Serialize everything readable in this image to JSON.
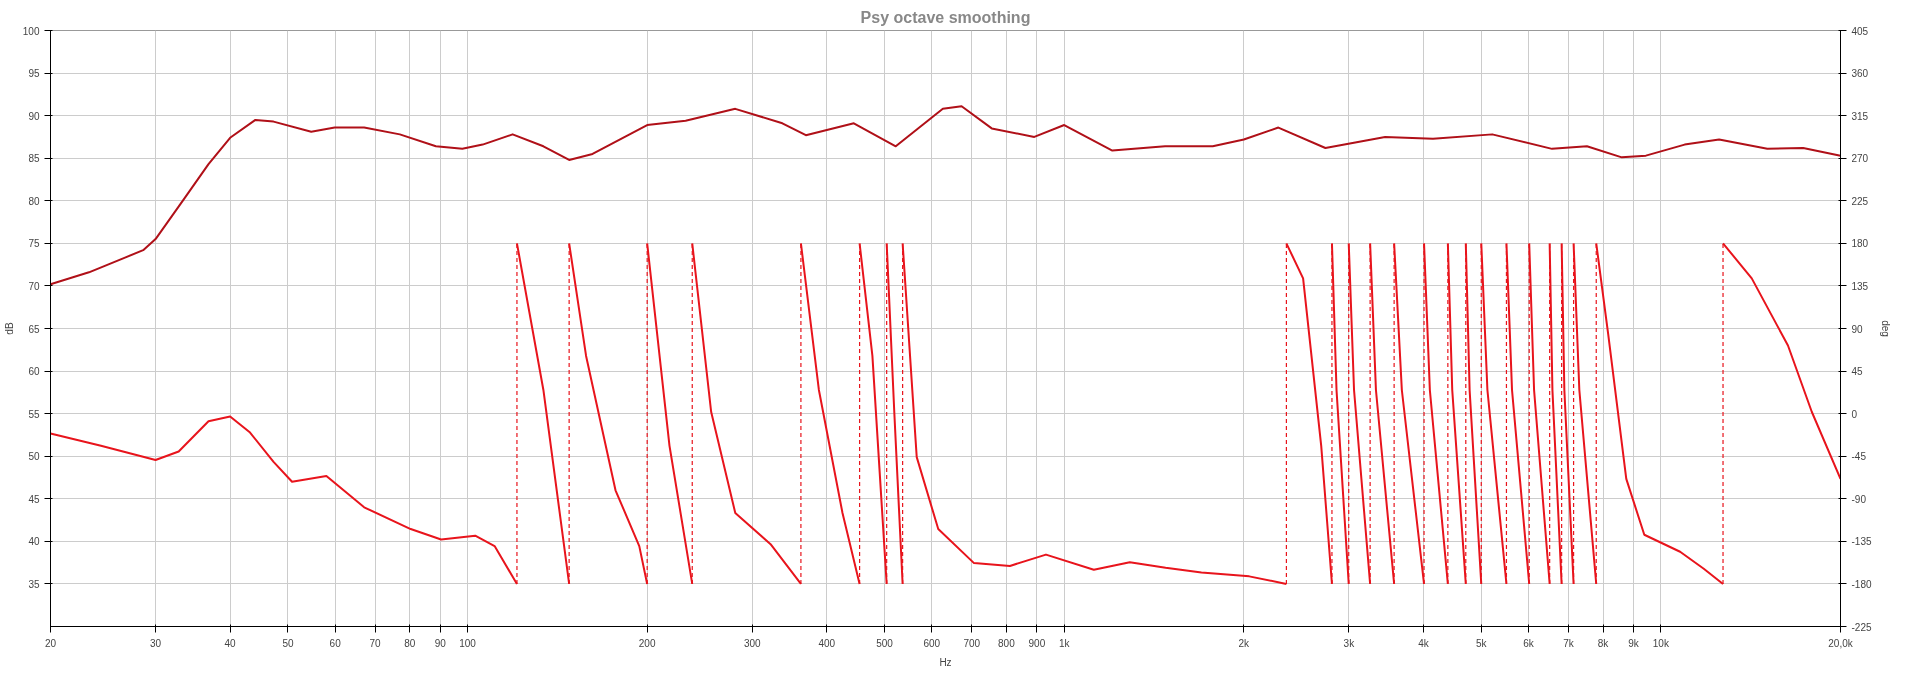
{
  "chart_data": {
    "type": "line",
    "title": "Psy octave smoothing",
    "xlabel": "Hz",
    "ylabel": "dB",
    "y2label": "deg",
    "log": "x",
    "grid": true,
    "xlim": [
      20,
      20000
    ],
    "xticks": [
      20,
      30,
      40,
      50,
      60,
      70,
      80,
      90,
      100,
      200,
      300,
      400,
      500,
      600,
      700,
      800,
      900,
      {
        "value": 1000,
        "label": "1k"
      },
      {
        "value": 2000,
        "label": "2k"
      },
      {
        "value": 3000,
        "label": "3k"
      },
      {
        "value": 4000,
        "label": "4k"
      },
      {
        "value": 5000,
        "label": "5k"
      },
      {
        "value": 6000,
        "label": "6k"
      },
      {
        "value": 7000,
        "label": "7k"
      },
      {
        "value": 8000,
        "label": "8k"
      },
      {
        "value": 9000,
        "label": "9k"
      },
      {
        "value": 10000,
        "label": "10k"
      },
      {
        "value": 20000,
        "label": "20,0k"
      }
    ],
    "ylim": [
      30,
      100
    ],
    "yticks": [
      35,
      40,
      45,
      50,
      55,
      60,
      65,
      70,
      75,
      80,
      85,
      90,
      95,
      100
    ],
    "y2lim": [
      -225,
      405
    ],
    "y2ticks": [
      -225,
      -180,
      -135,
      -90,
      -45,
      0,
      45,
      90,
      135,
      180,
      225,
      270,
      315,
      360,
      405
    ],
    "series": [
      {
        "color": "#b01018",
        "x": [
          20,
          23.2,
          26.6,
          28.6,
          30,
          33.4,
          36.8,
          40,
          44.1,
          47.3,
          54.7,
          59.9,
          67.1,
          77,
          88.5,
          98,
          106,
          119,
          134,
          148,
          162,
          200,
          232,
          281,
          337,
          369,
          444,
          522,
          626,
          673,
          756,
          891,
          1000,
          1204,
          1476,
          1774,
          2000,
          2285,
          2740,
          3450,
          4150,
          5216,
          6570,
          7517,
          8600,
          9438,
          10960,
          12520,
          15080,
          17320,
          20000
        ],
        "values": [
          70.2,
          71.6,
          73.3,
          74.2,
          75.5,
          80.1,
          84.3,
          87.4,
          89.5,
          89.3,
          88.1,
          88.6,
          88.6,
          87.8,
          86.4,
          86.1,
          86.6,
          87.8,
          86.4,
          84.8,
          85.5,
          88.9,
          89.4,
          90.8,
          89.1,
          87.7,
          89.1,
          86.4,
          90.8,
          91.1,
          88.5,
          87.5,
          88.9,
          85.9,
          86.4,
          86.4,
          87.2,
          88.6,
          86.2,
          87.5,
          87.3,
          87.8,
          86.1,
          86.4,
          85.1,
          85.3,
          86.6,
          87.2,
          86.1,
          86.2,
          85.3
        ]
      },
      {
        "color": "#e8141c",
        "axis": "y2",
        "x": [
          20,
          24.3,
          30,
          32.8,
          36.8,
          40,
          43.2,
          47.3,
          50.8,
          58,
          67.1,
          80.3,
          90.3,
          103,
          111,
          121,
          121,
          134,
          148,
          148,
          158,
          177,
          194,
          200,
          200,
          218,
          238,
          238,
          256,
          281,
          322,
          362,
          362,
          388,
          425,
          454,
          454,
          477,
          504,
          504,
          519,
          536,
          536,
          566,
          615,
          706,
          811,
          932,
          1121,
          1288,
          1479,
          1698,
          2042,
          2357,
          2357,
          2514,
          2696,
          2810,
          2810,
          2860,
          2998,
          2998,
          3060,
          3256,
          3256,
          3330,
          3572,
          3572,
          3680,
          4009,
          4009,
          4100,
          4395,
          4395,
          4470,
          4710,
          4710,
          4780,
          5000,
          5000,
          5120,
          5510,
          5510,
          5630,
          6016,
          6016,
          6130,
          6510,
          6510,
          6580,
          6818,
          6818,
          6890,
          7140,
          7140,
          7300,
          7792,
          7792,
          8160,
          8750,
          9380,
          10770,
          11800,
          12710,
          12710,
          14200,
          16330,
          17900,
          20000
        ],
        "values": [
          -21,
          -34,
          -49,
          -40,
          -8,
          -3,
          -20,
          -51,
          -72,
          -66,
          -99,
          -122,
          -133,
          -129,
          -140,
          -180,
          180,
          25,
          -180,
          180,
          61,
          -81,
          -140,
          -180,
          180,
          -34,
          -180,
          180,
          2,
          -105,
          -138,
          -180,
          180,
          25,
          -105,
          -180,
          180,
          61,
          -180,
          180,
          2,
          -180,
          180,
          -46,
          -122,
          -158,
          -161,
          -149,
          -165,
          -157,
          -163,
          -168,
          -172,
          -180,
          180,
          143,
          -34,
          -180,
          180,
          25,
          -180,
          180,
          25,
          -180,
          180,
          25,
          -180,
          180,
          25,
          -180,
          180,
          25,
          -180,
          180,
          25,
          -180,
          180,
          25,
          -180,
          180,
          25,
          -180,
          180,
          25,
          -180,
          180,
          25,
          -180,
          180,
          25,
          -180,
          180,
          25,
          -180,
          180,
          25,
          -180,
          180,
          84,
          -69,
          -128,
          -146,
          -164,
          -180,
          180,
          143,
          72,
          2,
          -69
        ]
      }
    ]
  }
}
